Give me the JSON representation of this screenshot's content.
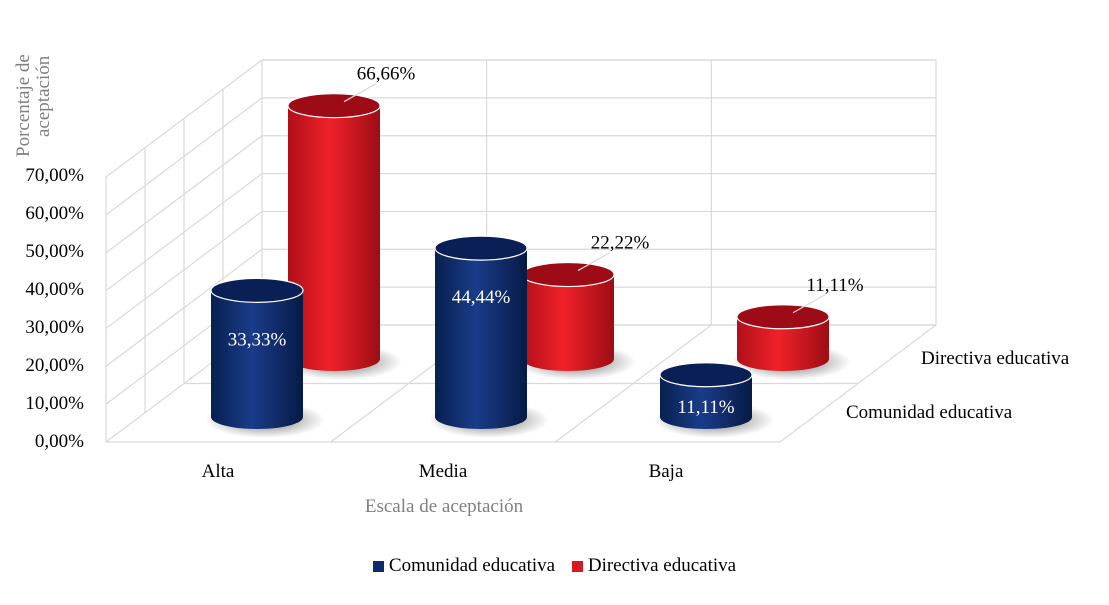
{
  "chart_data": {
    "type": "bar",
    "style": "3d-cylinder",
    "categories": [
      "Alta",
      "Media",
      "Baja"
    ],
    "series": [
      {
        "name": "Comunidad educativa",
        "values": [
          33.33,
          44.44,
          11.11
        ],
        "labels": [
          "33,33%",
          "44,44%",
          "11,11%"
        ],
        "color": "#0d2a6b"
      },
      {
        "name": "Directiva educativa",
        "values": [
          66.66,
          22.22,
          11.11
        ],
        "labels": [
          "66,66%",
          "22,22%",
          "11,11%"
        ],
        "color": "#d71920"
      }
    ],
    "y_ticks": [
      "0,00%",
      "10,00%",
      "20,00%",
      "30,00%",
      "40,00%",
      "50,00%",
      "60,00%",
      "70,00%"
    ],
    "ylim": [
      0,
      70
    ],
    "xlabel": "Escala de aceptación",
    "ylabel_lines": [
      "Porcentaje  de",
      "aceptación"
    ],
    "depth_labels": [
      "Directiva educativa",
      "Comunidad educativa"
    ],
    "legend": [
      "Comunidad educativa",
      "Directiva educativa"
    ],
    "legend_position": "bottom",
    "grid": true
  }
}
